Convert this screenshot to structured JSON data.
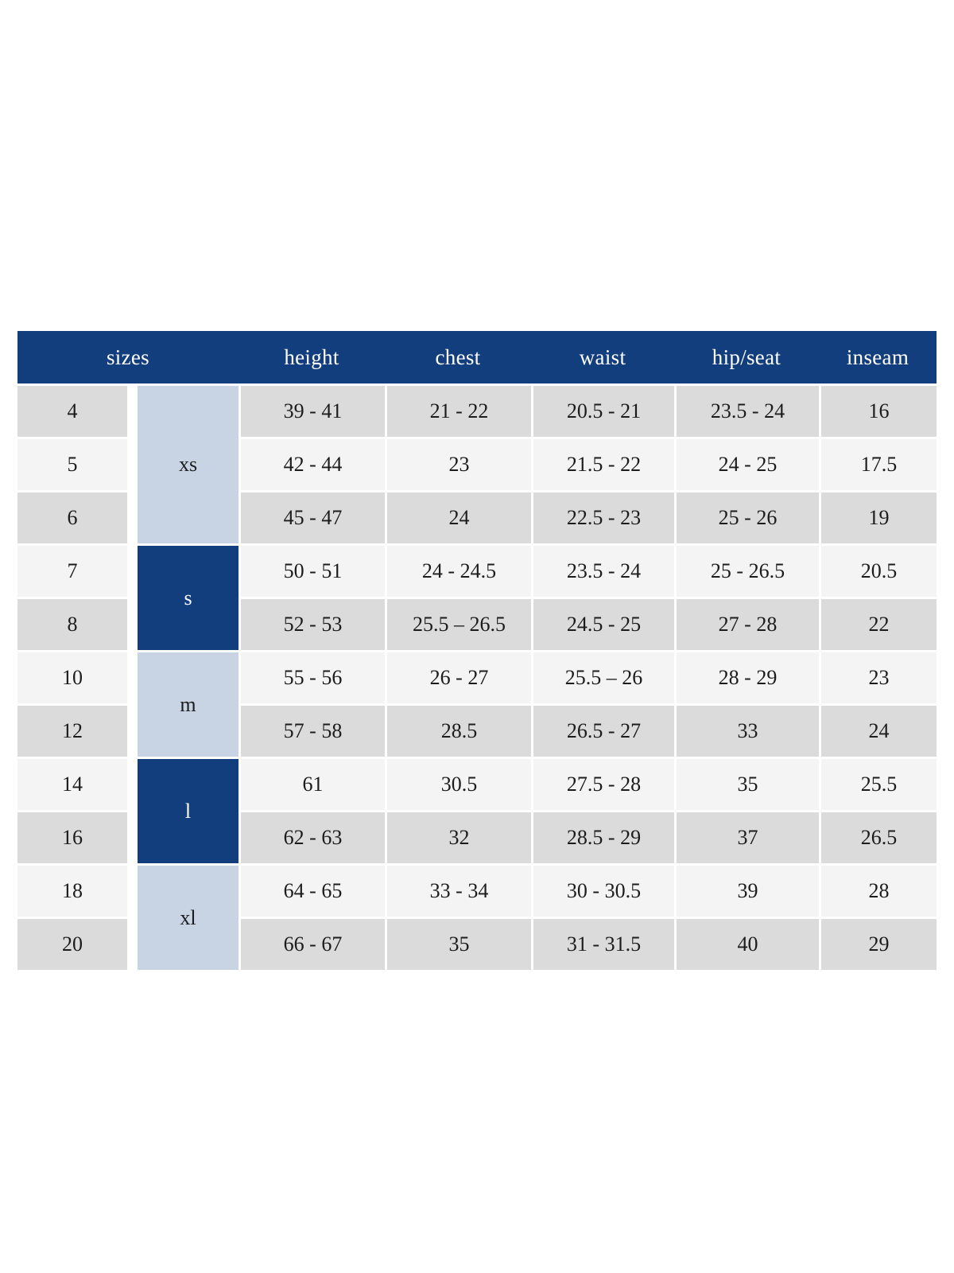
{
  "colors": {
    "header_bg": "#133e7d",
    "group_dark": "#133e7d",
    "group_light": "#c8d4e4",
    "row_gray": "#dbdbdb",
    "row_light": "#f4f4f4",
    "text": "#1c1c1c",
    "header_text": "#ffffff"
  },
  "table": {
    "headers": [
      "sizes",
      "height",
      "chest",
      "waist",
      "hip/seat",
      "inseam"
    ],
    "groups": [
      {
        "label": "xs",
        "rows": 3,
        "style": "light"
      },
      {
        "label": "s",
        "rows": 2,
        "style": "dark"
      },
      {
        "label": "m",
        "rows": 2,
        "style": "light"
      },
      {
        "label": "l",
        "rows": 2,
        "style": "dark"
      },
      {
        "label": "xl",
        "rows": 2,
        "style": "light"
      }
    ],
    "rows": [
      {
        "size": "4",
        "height": "39 - 41",
        "chest": "21 - 22",
        "waist": "20.5 - 21",
        "hip_seat": "23.5 - 24",
        "inseam": "16"
      },
      {
        "size": "5",
        "height": "42 - 44",
        "chest": "23",
        "waist": "21.5 - 22",
        "hip_seat": "24 - 25",
        "inseam": "17.5"
      },
      {
        "size": "6",
        "height": "45 - 47",
        "chest": "24",
        "waist": "22.5 - 23",
        "hip_seat": "25 - 26",
        "inseam": "19"
      },
      {
        "size": "7",
        "height": "50 - 51",
        "chest": "24 - 24.5",
        "waist": "23.5 - 24",
        "hip_seat": "25 - 26.5",
        "inseam": "20.5"
      },
      {
        "size": "8",
        "height": "52 - 53",
        "chest": "25.5 – 26.5",
        "waist": "24.5 - 25",
        "hip_seat": "27 - 28",
        "inseam": "22"
      },
      {
        "size": "10",
        "height": "55 - 56",
        "chest": "26 - 27",
        "waist": "25.5 – 26",
        "hip_seat": "28 - 29",
        "inseam": "23"
      },
      {
        "size": "12",
        "height": "57 - 58",
        "chest": "28.5",
        "waist": "26.5 - 27",
        "hip_seat": "33",
        "inseam": "24"
      },
      {
        "size": "14",
        "height": "61",
        "chest": "30.5",
        "waist": "27.5 - 28",
        "hip_seat": "35",
        "inseam": "25.5"
      },
      {
        "size": "16",
        "height": "62 - 63",
        "chest": "32",
        "waist": "28.5 - 29",
        "hip_seat": "37",
        "inseam": "26.5"
      },
      {
        "size": "18",
        "height": "64 - 65",
        "chest": "33 - 34",
        "waist": "30 - 30.5",
        "hip_seat": "39",
        "inseam": "28"
      },
      {
        "size": "20",
        "height": "66 - 67",
        "chest": "35",
        "waist": "31 - 31.5",
        "hip_seat": "40",
        "inseam": "29"
      }
    ]
  }
}
